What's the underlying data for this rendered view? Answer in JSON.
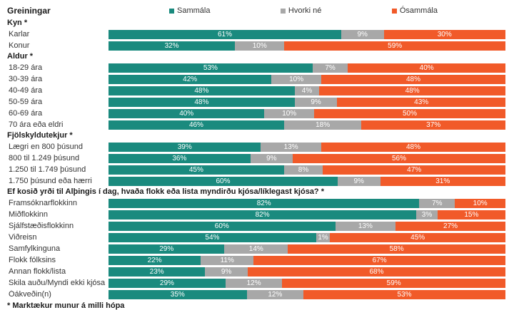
{
  "title": "Greiningar",
  "footnote": "* Marktækur munur á milli hópa",
  "chart_data": {
    "type": "bar",
    "stacked": true,
    "orientation": "horizontal",
    "unit": "%",
    "legend_position": "top",
    "series": [
      {
        "name": "Sammála",
        "key": "sammala",
        "color": "#1A8A7E"
      },
      {
        "name": "Hvorki né",
        "key": "hvorki-ne",
        "color": "#A8A8A8"
      },
      {
        "name": "Ósammála",
        "key": "osammala",
        "color": "#F15A29"
      }
    ],
    "groups": [
      {
        "header": "Kyn *",
        "rows": [
          {
            "label": "Karlar",
            "values": [
              61,
              9,
              30
            ]
          },
          {
            "label": "Konur",
            "values": [
              32,
              10,
              59
            ]
          }
        ]
      },
      {
        "header": "Aldur *",
        "rows": [
          {
            "label": "18-29 ára",
            "values": [
              53,
              7,
              40
            ]
          },
          {
            "label": "30-39 ára",
            "values": [
              42,
              10,
              48
            ]
          },
          {
            "label": "40-49 ára",
            "values": [
              48,
              4,
              48
            ]
          },
          {
            "label": "50-59 ára",
            "values": [
              48,
              9,
              43
            ]
          },
          {
            "label": "60-69 ára",
            "values": [
              40,
              10,
              50
            ]
          },
          {
            "label": "70 ára eða eldri",
            "values": [
              46,
              18,
              37
            ]
          }
        ]
      },
      {
        "header": "Fjölskyldutekjur *",
        "rows": [
          {
            "label": "Lægri en 800 þúsund",
            "values": [
              39,
              13,
              48
            ]
          },
          {
            "label": "800 til 1.249 þúsund",
            "values": [
              36,
              9,
              56
            ]
          },
          {
            "label": "1.250 til 1.749 þúsund",
            "values": [
              45,
              8,
              47
            ]
          },
          {
            "label": "1.750 þúsund eða hærri",
            "values": [
              60,
              9,
              31
            ]
          }
        ]
      },
      {
        "header": "Ef kosið yrði til Alþingis í dag, hvaða flokk eða lista myndirðu kjósa/líklegast kjósa? *",
        "rows": [
          {
            "label": "Framsóknarflokkinn",
            "values": [
              82,
              7,
              10
            ]
          },
          {
            "label": "Miðflokkinn",
            "values": [
              82,
              3,
              15
            ]
          },
          {
            "label": "Sjálfstæðisflokkinn",
            "values": [
              60,
              13,
              27
            ]
          },
          {
            "label": "Viðreisn",
            "values": [
              54,
              1,
              45
            ]
          },
          {
            "label": "Samfylkinguna",
            "values": [
              29,
              14,
              58
            ]
          },
          {
            "label": "Flokk fólksins",
            "values": [
              22,
              11,
              67
            ]
          },
          {
            "label": "Annan flokk/lista",
            "values": [
              23,
              9,
              68
            ]
          },
          {
            "label": "Skila auðu/Myndi ekki kjósa",
            "values": [
              29,
              12,
              59
            ]
          },
          {
            "label": "Óákveðin(n)",
            "values": [
              35,
              12,
              53
            ]
          }
        ]
      }
    ]
  }
}
